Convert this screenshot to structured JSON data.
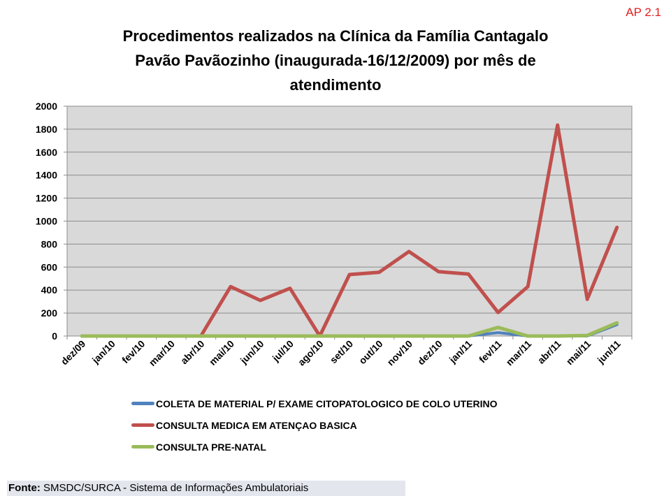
{
  "tag": "AP 2.1",
  "footer": {
    "label": "Fonte:",
    "text": " SMSDC/SURCA - Sistema de Informações Ambulatoriais"
  },
  "chart_data": {
    "type": "line",
    "title_lines": [
      "Procedimentos realizados na Clínica da Família Cantagalo",
      "Pavão Pavãozinho (inaugurada-16/12/2009) por mês de",
      "atendimento"
    ],
    "categories": [
      "dez/09",
      "jan/10",
      "fev/10",
      "mar/10",
      "abr/10",
      "mai/10",
      "jun/10",
      "jul/10",
      "ago/10",
      "set/10",
      "out/10",
      "nov/10",
      "dez/10",
      "jan/11",
      "fev/11",
      "mar/11",
      "abr/11",
      "mai/11",
      "jun/11"
    ],
    "yticks": [
      "0",
      "200",
      "400",
      "600",
      "800",
      "1000",
      "1200",
      "1400",
      "1600",
      "1800",
      "2000"
    ],
    "ylim": [
      0,
      2000
    ],
    "grid": true,
    "legend_position": "bottom",
    "plot_background": "#d9d9d9",
    "series": [
      {
        "name": "COLETA DE MATERIAL P/ EXAME CITOPATOLOGICO DE COLO UTERINO",
        "color": "#4f81bd",
        "values": [
          0,
          0,
          0,
          0,
          0,
          0,
          0,
          0,
          0,
          0,
          0,
          0,
          0,
          0,
          30,
          0,
          0,
          0,
          100
        ]
      },
      {
        "name": "CONSULTA MEDICA EM ATENÇAO BASICA",
        "color": "#c0504d",
        "values": [
          0,
          0,
          0,
          0,
          0,
          430,
          310,
          415,
          0,
          535,
          555,
          735,
          560,
          540,
          205,
          430,
          1835,
          320,
          945
        ]
      },
      {
        "name": "CONSULTA PRE-NATAL",
        "color": "#9bbb59",
        "values": [
          0,
          0,
          0,
          0,
          0,
          0,
          0,
          0,
          0,
          0,
          0,
          0,
          0,
          0,
          75,
          0,
          0,
          5,
          115
        ]
      }
    ]
  }
}
